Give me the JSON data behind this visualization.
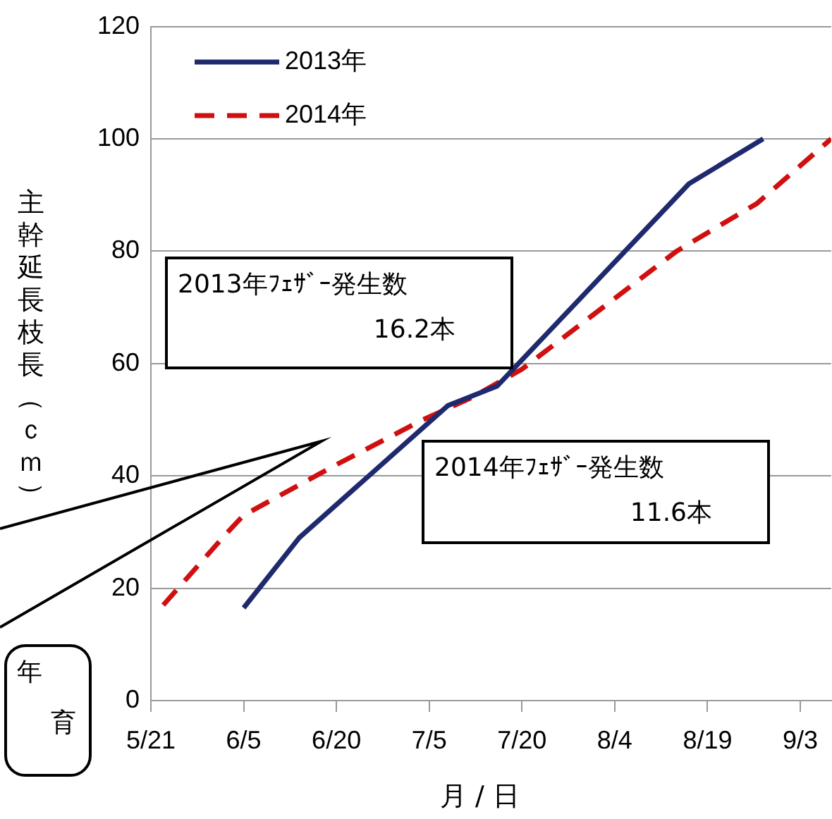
{
  "chart_data": {
    "type": "line",
    "xlabel": "月 / 日",
    "ylabel": "主幹延長枝長（ｃｍ）",
    "series": [
      {
        "name": "2013年",
        "color": "#1f2a6e",
        "line_style": "solid",
        "x": [
          "--06-05",
          "--06-14",
          "--07-08",
          "--07-16",
          "--08-16",
          "--08-28"
        ],
        "values": [
          16.5,
          29,
          52.5,
          56,
          92,
          100
        ]
      },
      {
        "name": "2014年",
        "color": "#d01010",
        "line_style": "dashed",
        "x": [
          "--05-23",
          "--06-02",
          "--06-05",
          "--06-20",
          "--07-04",
          "--07-12",
          "--07-20",
          "--08-14",
          "--08-27",
          "--09-08"
        ],
        "values": [
          17,
          29.5,
          33,
          42,
          50,
          54,
          59,
          80,
          88.5,
          100
        ]
      }
    ],
    "xlim": [
      "--05-21",
      "--09-08"
    ],
    "xticks": [
      {
        "value": "--05-21",
        "label": "5/21"
      },
      {
        "value": "--06-05",
        "label": "6/5"
      },
      {
        "value": "--06-20",
        "label": "6/20"
      },
      {
        "value": "--07-05",
        "label": "7/5"
      },
      {
        "value": "--07-20",
        "label": "7/20"
      },
      {
        "value": "--08-04",
        "label": "8/4"
      },
      {
        "value": "--08-19",
        "label": "8/19"
      },
      {
        "value": "--09-03",
        "label": "9/3"
      }
    ],
    "ylim": [
      0,
      120
    ],
    "yticks": [
      0,
      20,
      40,
      60,
      80,
      100,
      120
    ],
    "grid": "y",
    "legend": "top left",
    "marker": "none",
    "annotations": [
      "2013年ﾌｪｻﾞｰ発生数\n16.2本",
      "2014年ﾌｪｻﾞｰ発生数\n11.6本",
      "年育"
    ]
  }
}
